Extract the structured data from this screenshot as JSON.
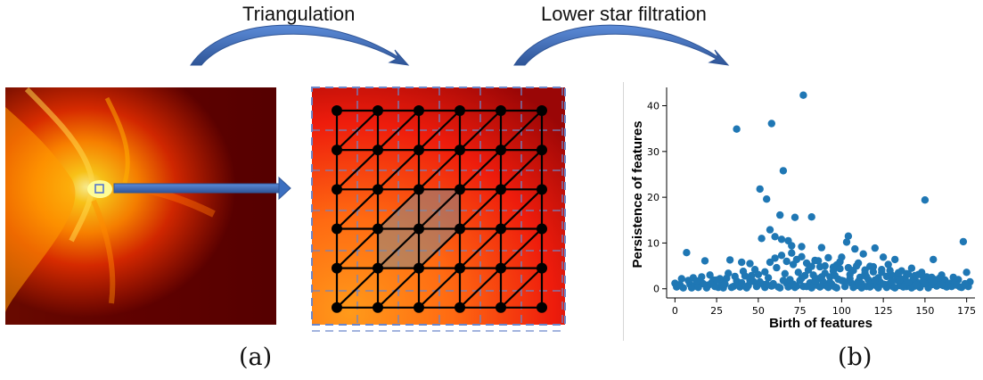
{
  "steps": {
    "first": "Triangulation",
    "second": "Lower star filtration"
  },
  "panels": {
    "a": "(a)",
    "b": "(b)"
  },
  "colors": {
    "arrow_blue": "#4472c4",
    "arrow_dark": "#2f5597",
    "grid_dash": "#6b86c9",
    "scatter_blue": "#1f77b4",
    "lattice_black": "#000000"
  },
  "grid": {
    "rows": 6,
    "cols": 6
  },
  "chart_data": {
    "type": "scatter",
    "xlabel": "Birth of features",
    "ylabel": "Persistence of features",
    "xlim": [
      -5,
      180
    ],
    "ylim": [
      -2,
      44
    ],
    "xticks": [
      0,
      25,
      50,
      75,
      100,
      125,
      150,
      175
    ],
    "yticks": [
      0,
      10,
      20,
      30,
      40
    ],
    "grid": false,
    "series": [
      {
        "points": [
          [
            77,
            42.3
          ],
          [
            37,
            34.9
          ],
          [
            58,
            36.1
          ],
          [
            65,
            25.8
          ],
          [
            51,
            21.8
          ],
          [
            55,
            19.6
          ],
          [
            150,
            19.4
          ],
          [
            63,
            16.1
          ],
          [
            72,
            15.6
          ],
          [
            82,
            15.7
          ],
          [
            57,
            12.9
          ],
          [
            60,
            11.4
          ],
          [
            52,
            11.0
          ],
          [
            64,
            10.8
          ],
          [
            68,
            10.5
          ],
          [
            70,
            9.4
          ],
          [
            76,
            9.2
          ],
          [
            88,
            9.0
          ],
          [
            104,
            11.5
          ],
          [
            103,
            10.2
          ],
          [
            173,
            10.3
          ],
          [
            108,
            8.7
          ],
          [
            120,
            8.9
          ],
          [
            113,
            7.6
          ],
          [
            125,
            6.9
          ],
          [
            132,
            6.4
          ],
          [
            7,
            7.9
          ],
          [
            18,
            6.1
          ],
          [
            33,
            6.3
          ],
          [
            40,
            5.8
          ],
          [
            45,
            5.5
          ],
          [
            48,
            4.2
          ],
          [
            84,
            6.2
          ],
          [
            92,
            6.8
          ],
          [
            97,
            5.2
          ],
          [
            100,
            6.9
          ],
          [
            110,
            5.6
          ],
          [
            117,
            4.9
          ],
          [
            128,
            5.3
          ],
          [
            136,
            3.9
          ],
          [
            142,
            4.5
          ],
          [
            148,
            3.6
          ],
          [
            155,
            6.4
          ],
          [
            160,
            3.0
          ],
          [
            167,
            2.5
          ],
          [
            175,
            3.6
          ],
          [
            177,
            1.5
          ],
          [
            170,
            2.0
          ],
          [
            165,
            1.2
          ],
          [
            176,
            0.5
          ],
          [
            171,
            0.4
          ],
          [
            0,
            1.2
          ],
          [
            1,
            0.4
          ],
          [
            3,
            0.9
          ],
          [
            5,
            0.2
          ],
          [
            9,
            1.0
          ],
          [
            12,
            0.6
          ],
          [
            15,
            1.5
          ],
          [
            20,
            0.8
          ],
          [
            23,
            1.9
          ],
          [
            26,
            0.3
          ],
          [
            28,
            1.4
          ],
          [
            31,
            2.3
          ],
          [
            35,
            0.5
          ],
          [
            38,
            1.2
          ],
          [
            42,
            2.8
          ],
          [
            44,
            0.7
          ],
          [
            47,
            1.6
          ],
          [
            50,
            3.1
          ],
          [
            53,
            0.9
          ],
          [
            56,
            2.4
          ],
          [
            59,
            1.1
          ],
          [
            61,
            4.6
          ],
          [
            62,
            0.4
          ],
          [
            66,
            3.3
          ],
          [
            67,
            1.2
          ],
          [
            69,
            2.0
          ],
          [
            71,
            5.3
          ],
          [
            73,
            0.6
          ],
          [
            74,
            3.6
          ],
          [
            75,
            1.8
          ],
          [
            78,
            2.9
          ],
          [
            79,
            0.5
          ],
          [
            80,
            4.1
          ],
          [
            81,
            1.3
          ],
          [
            83,
            3.0
          ],
          [
            85,
            0.8
          ],
          [
            86,
            2.2
          ],
          [
            87,
            4.8
          ],
          [
            89,
            1.5
          ],
          [
            90,
            3.4
          ],
          [
            91,
            0.6
          ],
          [
            93,
            2.6
          ],
          [
            94,
            1.0
          ],
          [
            95,
            3.9
          ],
          [
            96,
            0.4
          ],
          [
            98,
            2.1
          ],
          [
            99,
            4.4
          ],
          [
            101,
            1.7
          ],
          [
            102,
            0.5
          ],
          [
            105,
            3.1
          ],
          [
            106,
            1.2
          ],
          [
            107,
            4.0
          ],
          [
            109,
            0.7
          ],
          [
            111,
            2.5
          ],
          [
            112,
            1.1
          ],
          [
            114,
            3.4
          ],
          [
            115,
            0.5
          ],
          [
            116,
            2.0
          ],
          [
            118,
            1.3
          ],
          [
            119,
            3.7
          ],
          [
            121,
            0.6
          ],
          [
            122,
            2.4
          ],
          [
            123,
            1.5
          ],
          [
            124,
            4.2
          ],
          [
            126,
            0.9
          ],
          [
            127,
            2.7
          ],
          [
            129,
            1.2
          ],
          [
            130,
            3.0
          ],
          [
            131,
            0.4
          ],
          [
            133,
            1.9
          ],
          [
            134,
            2.8
          ],
          [
            135,
            0.7
          ],
          [
            137,
            1.6
          ],
          [
            138,
            2.3
          ],
          [
            139,
            0.5
          ],
          [
            140,
            3.2
          ],
          [
            141,
            1.0
          ],
          [
            143,
            2.1
          ],
          [
            144,
            0.6
          ],
          [
            145,
            1.5
          ],
          [
            146,
            3.1
          ],
          [
            147,
            0.8
          ],
          [
            149,
            1.7
          ],
          [
            151,
            2.6
          ],
          [
            152,
            0.5
          ],
          [
            153,
            1.4
          ],
          [
            154,
            0.9
          ],
          [
            156,
            2.0
          ],
          [
            157,
            0.6
          ],
          [
            158,
            1.2
          ],
          [
            159,
            2.4
          ],
          [
            161,
            0.7
          ],
          [
            162,
            1.9
          ],
          [
            163,
            0.4
          ],
          [
            164,
            1.1
          ],
          [
            166,
            0.5
          ],
          [
            168,
            1.3
          ],
          [
            169,
            0.8
          ],
          [
            172,
            0.3
          ],
          [
            174,
            1.1
          ],
          [
            10,
            0.2
          ],
          [
            14,
            0.3
          ],
          [
            19,
            0.2
          ],
          [
            24,
            0.5
          ],
          [
            29,
            0.2
          ],
          [
            34,
            0.3
          ],
          [
            39,
            0.4
          ],
          [
            43,
            0.2
          ],
          [
            49,
            0.5
          ],
          [
            54,
            0.3
          ],
          [
            58,
            0.6
          ],
          [
            63,
            0.2
          ],
          [
            68,
            0.4
          ],
          [
            72,
            0.3
          ],
          [
            77,
            0.5
          ],
          [
            82,
            0.2
          ],
          [
            87,
            0.4
          ],
          [
            92,
            0.3
          ],
          [
            97,
            0.2
          ],
          [
            102,
            1.4
          ],
          [
            107,
            0.3
          ],
          [
            112,
            0.2
          ],
          [
            117,
            0.4
          ],
          [
            122,
            0.2
          ],
          [
            127,
            0.3
          ],
          [
            132,
            0.2
          ],
          [
            137,
            0.4
          ],
          [
            142,
            0.2
          ],
          [
            147,
            0.3
          ],
          [
            152,
            0.2
          ],
          [
            16,
            2.6
          ],
          [
            21,
            3.0
          ],
          [
            27,
            2.2
          ],
          [
            32,
            3.4
          ],
          [
            36,
            2.7
          ],
          [
            41,
            3.8
          ],
          [
            46,
            2.9
          ],
          [
            54,
            3.7
          ],
          [
            57,
            5.8
          ],
          [
            60,
            6.7
          ],
          [
            64,
            7.3
          ],
          [
            67,
            6.0
          ],
          [
            70,
            7.8
          ],
          [
            73,
            6.4
          ],
          [
            76,
            7.0
          ],
          [
            79,
            5.6
          ],
          [
            82,
            4.9
          ],
          [
            86,
            6.1
          ],
          [
            90,
            5.0
          ],
          [
            95,
            4.7
          ],
          [
            99,
            5.9
          ],
          [
            104,
            4.6
          ],
          [
            109,
            5.0
          ],
          [
            114,
            4.1
          ],
          [
            119,
            4.8
          ],
          [
            124,
            3.6
          ],
          [
            129,
            4.0
          ],
          [
            134,
            3.5
          ],
          [
            139,
            3.3
          ],
          [
            144,
            2.9
          ],
          [
            149,
            2.6
          ],
          [
            154,
            2.5
          ],
          [
            4,
            2.2
          ],
          [
            8,
            1.8
          ],
          [
            11,
            2.4
          ],
          [
            13,
            1.7
          ],
          [
            17,
            1.1
          ],
          [
            22,
            1.3
          ],
          [
            25,
            1.9
          ],
          [
            30,
            1.0
          ],
          [
            37,
            1.7
          ],
          [
            40,
            1.3
          ],
          [
            45,
            1.9
          ],
          [
            51,
            1.5
          ],
          [
            55,
            1.0
          ],
          [
            65,
            1.8
          ],
          [
            71,
            1.0
          ],
          [
            76,
            2.3
          ],
          [
            84,
            1.8
          ],
          [
            88,
            2.6
          ],
          [
            93,
            1.4
          ],
          [
            96,
            2.9
          ],
          [
            100,
            1.8
          ],
          [
            105,
            2.2
          ],
          [
            110,
            1.6
          ],
          [
            115,
            2.6
          ],
          [
            120,
            1.9
          ],
          [
            125,
            1.0
          ],
          [
            130,
            1.6
          ],
          [
            135,
            2.0
          ],
          [
            140,
            1.4
          ],
          [
            145,
            0.9
          ],
          [
            150,
            1.1
          ],
          [
            155,
            1.7
          ],
          [
            160,
            0.9
          ]
        ]
      }
    ]
  }
}
